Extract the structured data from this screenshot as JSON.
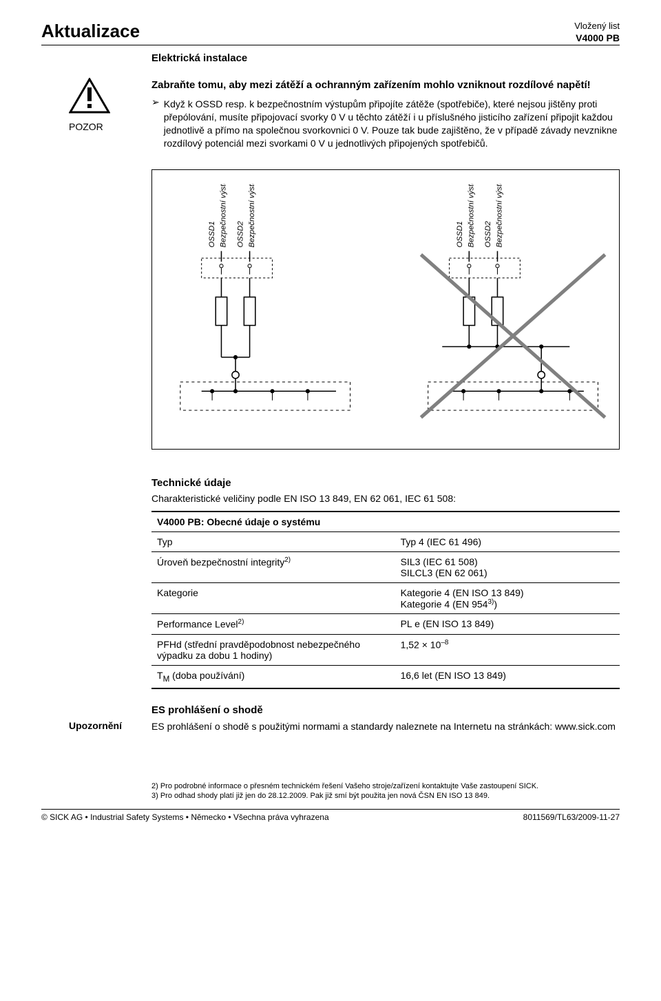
{
  "header": {
    "title": "Aktualizace",
    "right1": "Vložený list",
    "right2": "V4000 PB",
    "subsection": "Elektrická instalace"
  },
  "warning": {
    "label": "POZOR",
    "title": "Zabraňte tomu, aby mezi zátěží a ochranným zařízením mohlo vzniknout rozdílové napětí!",
    "bullet": "Když k OSSD resp. k bezpečnostním výstupům připojíte zátěže (spotřebiče), které nejsou jištěny proti přepólování, musíte připojovací svorky 0 V u těchto zátěží i u příslušného jisticího zařízení připojit každou jednotlivě a přímo na společnou svorkovnici 0 V. Pouze tak bude zajištěno, že v případě závady nevznikne rozdílový potenciál mezi svorkami 0 V u jednotlivých připojených spotřebičů."
  },
  "diagram": {
    "labels": {
      "ossd1": "OSSD1",
      "out1": "Bezpečnostní výstup 1",
      "ossd2": "OSSD2",
      "out2": "Bezpečnostní výstup 2"
    },
    "line_color": "#000000",
    "dash_color": "#000000",
    "cross_color": "#808080",
    "background": "#ffffff"
  },
  "tech": {
    "heading": "Technické údaje",
    "intro": "Charakteristické veličiny podle EN ISO 13 849, EN 62 061, IEC 61 508:",
    "section_title": "V4000 PB: Obecné údaje o systému",
    "rows": [
      {
        "k": "Typ",
        "v": "Typ 4 (IEC 61 496)"
      },
      {
        "k": "Úroveň bezpečnostní integrity",
        "ksup": "2)",
        "v": "SIL3 (IEC 61 508)\nSILCL3 (EN 62 061)"
      },
      {
        "k": "Kategorie",
        "v": "Kategorie 4 (EN ISO 13 849)\nKategorie 4 (EN 954",
        "vsup": "3)",
        "vtail": ")"
      },
      {
        "k": "Performance Level",
        "ksup": "2)",
        "v": "PL e (EN ISO 13 849)"
      },
      {
        "k": "PFHd (střední pravděpodobnost nebezpečného výpadku za dobu 1 hodiny)",
        "v": "1,52 × 10",
        "vsup": "–8"
      },
      {
        "k": "T",
        "ksub": "M",
        "ktail": " (doba používání)",
        "v": "16,6 let (EN ISO 13 849)"
      }
    ]
  },
  "es": {
    "heading": "ES prohlášení o shodě",
    "label": "Upozornění",
    "body": "ES prohlášení o shodě s použitými normami a standardy naleznete na Internetu na stránkách: www.sick.com"
  },
  "footnotes": {
    "n2": "2) Pro podrobné informace o přesném technickém řešení Vašeho stroje/zařízení kontaktujte Vaše zastoupení SICK.",
    "n3": "3) Pro odhad shody platí již jen do 28.12.2009. Pak již smí být použita jen nová ČSN EN ISO 13 849."
  },
  "footer": {
    "left": "© SICK AG • Industrial Safety Systems • Německo • Všechna práva vyhrazena",
    "right": "8011569/TL63/2009-11-27"
  }
}
